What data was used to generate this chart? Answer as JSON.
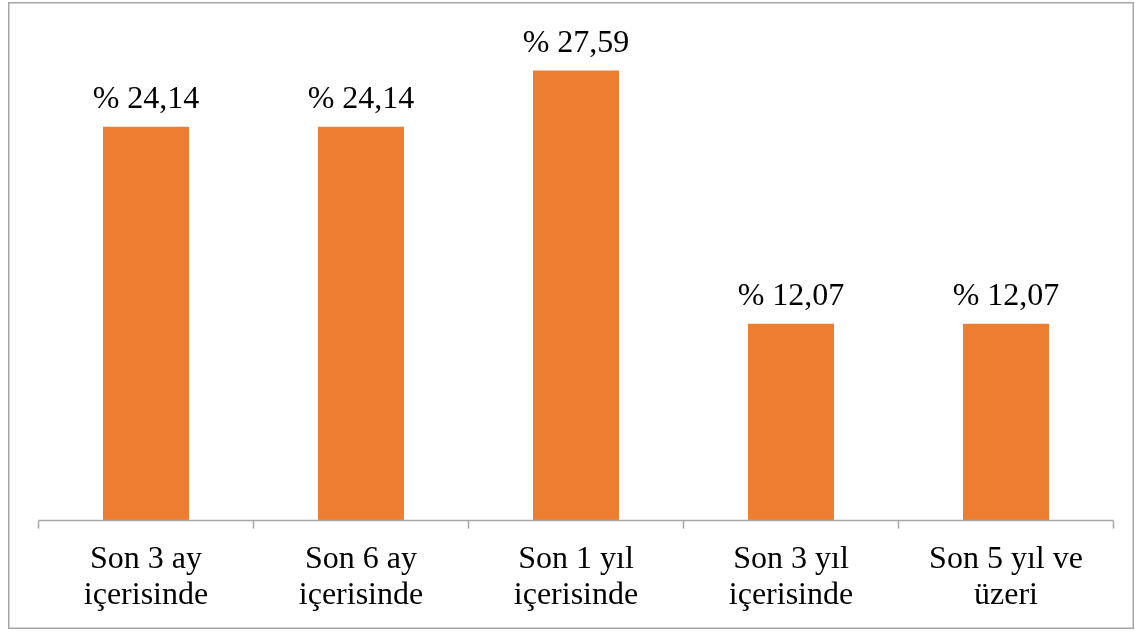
{
  "chart_data": {
    "type": "bar",
    "categories": [
      "Son 3 ay içerisinde",
      "Son 6 ay içerisinde",
      "Son 1 yıl içerisinde",
      "Son 3 yıl içerisinde",
      "Son 5 yıl ve üzeri"
    ],
    "values": [
      24.14,
      24.14,
      27.59,
      12.07,
      12.07
    ],
    "color": "#ed7d31",
    "value_labels": [
      "% 24,14",
      "% 24,14",
      "% 27,59",
      "% 12,07",
      "% 12,07"
    ],
    "tick_labels": "x"
  }
}
